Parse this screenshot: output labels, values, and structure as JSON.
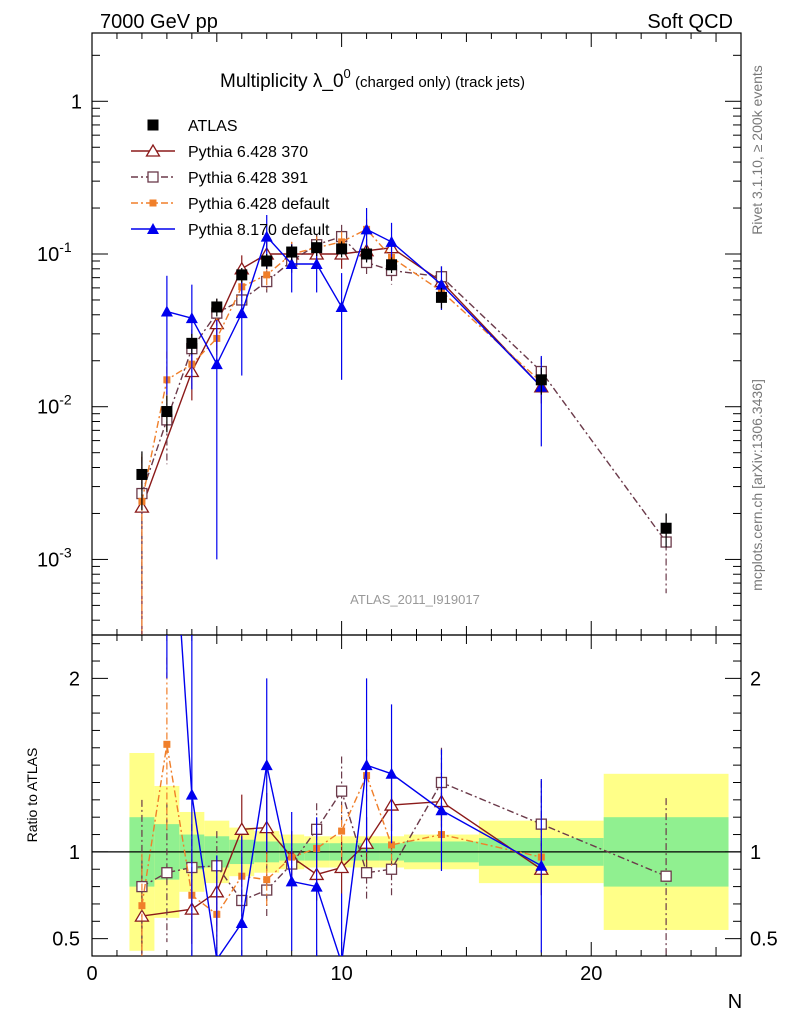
{
  "header": {
    "left": "7000 GeV pp",
    "right": "Soft QCD"
  },
  "side_labels": {
    "rivet": "Rivet 3.1.10, ≥ 200k events",
    "mcplots": "mcplots.cern.ch [arXiv:1306.3436]"
  },
  "chart_data": {
    "type": "scatter",
    "title_main": "Multiplicity λ_0",
    "title_sup": "0",
    "title_rest": " (charged only) (track jets)",
    "analysis_id": "ATLAS_2011_I919017",
    "xlabel": "N",
    "ylabel_ratio": "Ratio to ATLAS",
    "xlim": [
      0,
      26
    ],
    "ylim_main": [
      0.00032,
      2.8
    ],
    "ylim_ratio": [
      0.4,
      2.25
    ],
    "log_y_main": true,
    "x_ticks": [
      "0",
      "10",
      "20"
    ],
    "y_ticks_main": [
      "10^-3",
      "10^-2",
      "10^-1",
      "1"
    ],
    "y_ticks_ratio": [
      "0.5",
      "1",
      "2"
    ],
    "legend_position": "top-left",
    "series": [
      {
        "name": "ATLAS",
        "color": "#000000",
        "x": [
          2,
          3,
          4,
          5,
          6,
          7,
          8,
          9,
          10,
          11,
          12,
          14,
          18,
          23
        ],
        "y": [
          0.0036,
          0.0093,
          0.026,
          0.045,
          0.073,
          0.09,
          0.103,
          0.11,
          0.108,
          0.1,
          0.085,
          0.052,
          0.015,
          0.0016
        ]
      },
      {
        "name": "Pythia 6.428 370",
        "color": "#8b1a1a",
        "x": [
          2,
          4,
          5,
          6,
          7,
          8,
          9,
          10,
          11,
          12,
          14,
          18
        ],
        "y": [
          0.0022,
          0.017,
          0.035,
          0.08,
          0.1,
          0.1,
          0.1,
          0.1,
          0.105,
          0.11,
          0.066,
          0.0135
        ],
        "err": [
          0.0025,
          0.006,
          0.012,
          0.018,
          0.02,
          0.02,
          0.02,
          0.02,
          0.02,
          0.02,
          0.012,
          0.003
        ],
        "ratio": [
          0.63,
          0.67,
          0.77,
          1.13,
          1.14,
          0.97,
          0.87,
          0.91,
          1.05,
          1.27,
          1.29,
          0.9
        ],
        "ratio_err": [
          0.3,
          0.2,
          0.2,
          0.2,
          0.2,
          0.15,
          0.15,
          0.15,
          0.15,
          0.15,
          0.15,
          0.15
        ]
      },
      {
        "name": "Pythia 6.428 391",
        "color": "#6b3a4a",
        "x": [
          2,
          3,
          4,
          5,
          6,
          7,
          8,
          9,
          10,
          11,
          12,
          14,
          18,
          23
        ],
        "y": [
          0.0027,
          0.0082,
          0.024,
          0.041,
          0.05,
          0.066,
          0.09,
          0.115,
          0.13,
          0.088,
          0.078,
          0.071,
          0.017,
          0.0013
        ],
        "err": [
          0.002,
          0.004,
          0.008,
          0.01,
          0.01,
          0.012,
          0.015,
          0.02,
          0.025,
          0.015,
          0.015,
          0.012,
          0.004,
          0.0007
        ],
        "ratio": [
          0.8,
          0.88,
          0.91,
          0.92,
          0.72,
          0.78,
          0.93,
          1.13,
          1.35,
          0.88,
          0.9,
          1.4,
          1.16,
          0.86
        ],
        "ratio_err": [
          0.5,
          0.4,
          0.25,
          0.2,
          0.15,
          0.15,
          0.15,
          0.15,
          0.2,
          0.15,
          0.15,
          0.2,
          0.25,
          0.45
        ]
      },
      {
        "name": "Pythia 6.428 default",
        "color": "#f07f2a",
        "x": [
          2,
          3,
          4,
          5,
          6,
          7,
          8,
          9,
          10,
          11,
          12,
          14,
          18
        ],
        "y": [
          0.0024,
          0.015,
          0.019,
          0.028,
          0.061,
          0.073,
          0.1,
          0.11,
          0.12,
          0.145,
          0.095,
          0.057,
          0.0145
        ],
        "err": [
          0.0025,
          0.008,
          0.006,
          0.01,
          0.012,
          0.014,
          0.02,
          0.02,
          0.02,
          0.025,
          0.015,
          0.01,
          0.003
        ],
        "ratio": [
          0.69,
          1.62,
          0.75,
          0.64,
          0.86,
          0.84,
          0.97,
          1.02,
          1.12,
          1.44,
          1.04,
          1.1,
          0.97
        ],
        "ratio_err": [
          0.3,
          0.5,
          0.25,
          0.2,
          0.15,
          0.15,
          0.12,
          0.12,
          0.15,
          0.15,
          0.12,
          0.12,
          0.15
        ]
      },
      {
        "name": "Pythia 8.170 default",
        "color": "#0000ee",
        "x": [
          3,
          4,
          5,
          6,
          7,
          8,
          9,
          10,
          11,
          12,
          14,
          18
        ],
        "y": [
          0.042,
          0.038,
          0.019,
          0.041,
          0.13,
          0.086,
          0.086,
          0.045,
          0.145,
          0.12,
          0.063,
          0.0135
        ],
        "err": [
          0.03,
          0.025,
          0.018,
          0.025,
          0.05,
          0.03,
          0.03,
          0.03,
          0.055,
          0.04,
          0.02,
          0.008
        ],
        "ratio": [
          3.5,
          1.33,
          0.38,
          0.59,
          1.5,
          0.83,
          0.8,
          0.36,
          1.5,
          1.45,
          1.24,
          0.92
        ],
        "ratio_err": [
          1.5,
          1.0,
          0.6,
          0.5,
          0.5,
          0.4,
          0.4,
          0.4,
          0.5,
          0.4,
          0.35,
          0.5
        ]
      }
    ],
    "atlas_err": [
      0.0015,
      0.0025,
      0.004,
      0.006,
      0.008,
      0.01,
      0.012,
      0.013,
      0.013,
      0.012,
      0.01,
      0.008,
      0.003,
      0.0004
    ],
    "band_bins": [
      [
        1.5,
        2.5
      ],
      [
        2.5,
        3.5
      ],
      [
        3.5,
        4.5
      ],
      [
        4.5,
        5.5
      ],
      [
        5.5,
        6.5
      ],
      [
        6.5,
        7.5
      ],
      [
        7.5,
        8.5
      ],
      [
        8.5,
        9.5
      ],
      [
        9.5,
        10.5
      ],
      [
        10.5,
        11.5
      ],
      [
        11.5,
        12.5
      ],
      [
        12.5,
        15.5
      ],
      [
        15.5,
        20.5
      ],
      [
        20.5,
        25.5
      ]
    ],
    "band_stat": [
      0.2,
      0.16,
      0.1,
      0.09,
      0.07,
      0.06,
      0.05,
      0.05,
      0.05,
      0.05,
      0.05,
      0.06,
      0.08,
      0.2
    ],
    "band_total": [
      0.57,
      0.38,
      0.23,
      0.18,
      0.14,
      0.12,
      0.1,
      0.09,
      0.09,
      0.09,
      0.09,
      0.1,
      0.18,
      0.45
    ]
  }
}
